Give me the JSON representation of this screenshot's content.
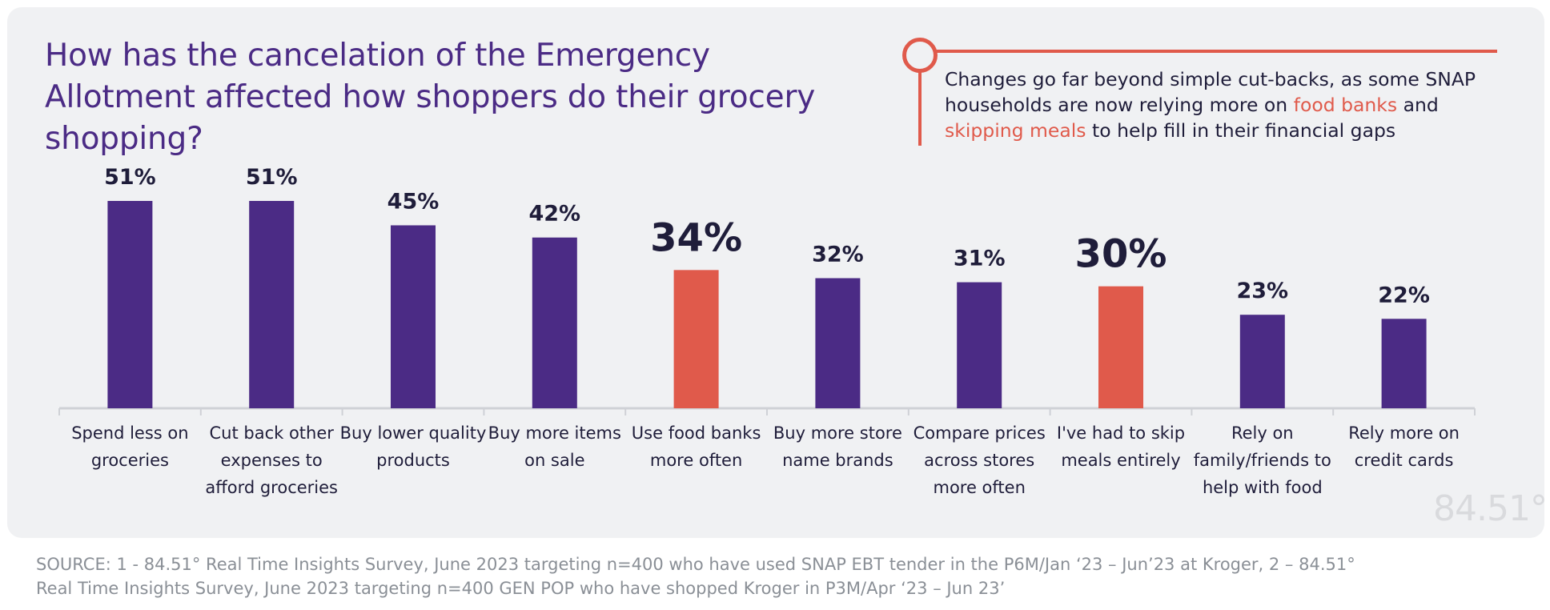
{
  "title": "How has the cancelation of the Emergency Allotment affected how shoppers do their grocery shopping?",
  "callout": {
    "part1": "Changes go far beyond simple cut-backs, as some SNAP households are now relying more on ",
    "highlight1": "food banks",
    "part2": " and ",
    "highlight2": "skipping meals",
    "part3": " to help fill in their financial gaps"
  },
  "colors": {
    "primary": "#4b2b85",
    "highlight": "#e05a4b",
    "axis": "#cfd1d6",
    "text": "#1f1d3a"
  },
  "chart_data": {
    "type": "bar",
    "title": "How has the cancelation of the Emergency Allotment affected how shoppers do their grocery shopping?",
    "xlabel": "",
    "ylabel": "",
    "ylim": [
      0,
      51
    ],
    "grid": false,
    "categories": [
      "Spend less on groceries",
      "Cut back other expenses to afford groceries",
      "Buy lower quality products",
      "Buy more items on sale",
      "Use food banks more often",
      "Buy more store name brands",
      "Compare prices across stores more often",
      "I've had to skip meals entirely",
      "Rely on family/friends to help with food",
      "Rely more on credit cards"
    ],
    "category_lines": [
      [
        "Spend less on",
        "groceries"
      ],
      [
        "Cut back other",
        "expenses to",
        "afford groceries"
      ],
      [
        "Buy lower quality",
        "products"
      ],
      [
        "Buy more items",
        "on sale"
      ],
      [
        "Use food banks",
        "more often"
      ],
      [
        "Buy more store",
        "name brands"
      ],
      [
        "Compare prices",
        "across stores",
        "more often"
      ],
      [
        "I've had to skip",
        "meals entirely"
      ],
      [
        "Rely on",
        "family/friends to",
        "help with food"
      ],
      [
        "Rely more on",
        "credit cards"
      ]
    ],
    "values": [
      51,
      51,
      45,
      42,
      34,
      32,
      31,
      30,
      23,
      22
    ],
    "value_labels": [
      "51%",
      "51%",
      "45%",
      "42%",
      "34%",
      "32%",
      "31%",
      "30%",
      "23%",
      "22%"
    ],
    "highlighted": [
      false,
      false,
      false,
      false,
      true,
      false,
      false,
      true,
      false,
      false
    ]
  },
  "logo": "84.51°",
  "source_line1": "SOURCE:  1 - 84.51° Real Time Insights Survey, June 2023 targeting n=400 who have used SNAP EBT tender in the P6M/Jan ‘23 – Jun’23 at Kroger,  2 – 84.51°",
  "source_line2": "Real Time Insights Survey, June 2023 targeting n=400  GEN POP who have shopped Kroger in P3M/Apr ‘23 – Jun 23’"
}
